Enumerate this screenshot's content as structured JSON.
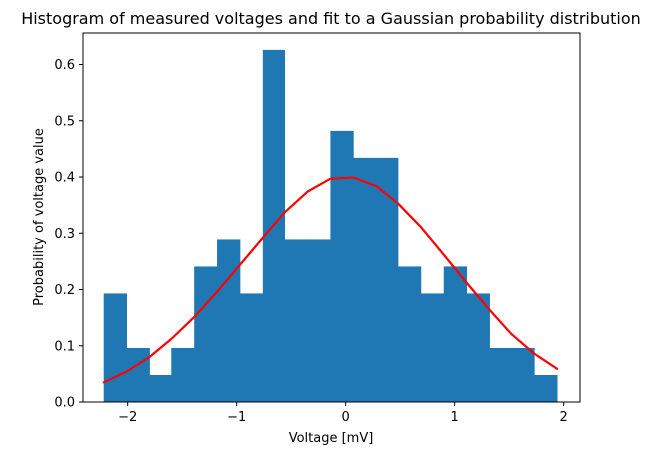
{
  "colors": {
    "bar": "#1f77b4",
    "fit_line": "#ff0000",
    "axes": "#000000",
    "background": "#ffffff"
  },
  "chart_data": {
    "type": "bar",
    "title": "Histogram of measured voltages and fit to a Gaussian probability distribution",
    "xlabel": "Voltage [mV]",
    "ylabel": "Probability of voltage value",
    "xlim": [
      -2.41,
      2.15
    ],
    "ylim": [
      0,
      0.656
    ],
    "grid": false,
    "xticks": [
      -2,
      -1,
      0,
      1,
      2
    ],
    "xtick_labels": [
      "−2",
      "−1",
      "0",
      "1",
      "2"
    ],
    "yticks": [
      0.0,
      0.1,
      0.2,
      0.3,
      0.4,
      0.5,
      0.6
    ],
    "ytick_labels": [
      "0.0",
      "0.1",
      "0.2",
      "0.3",
      "0.4",
      "0.5",
      "0.6"
    ],
    "histogram": {
      "bin_edges": [
        -2.22,
        -2.01,
        -1.8,
        -1.6,
        -1.39,
        -1.18,
        -0.97,
        -0.76,
        -0.56,
        -0.35,
        -0.14,
        0.07,
        0.28,
        0.48,
        0.69,
        0.9,
        1.11,
        1.32,
        1.52,
        1.73,
        1.94
      ],
      "values": [
        0.193,
        0.096,
        0.048,
        0.096,
        0.241,
        0.289,
        0.193,
        0.626,
        0.289,
        0.289,
        0.482,
        0.434,
        0.434,
        0.241,
        0.193,
        0.241,
        0.193,
        0.096,
        0.096,
        0.048
      ]
    },
    "fit_line": {
      "x": [
        -2.22,
        -2.01,
        -1.8,
        -1.6,
        -1.39,
        -1.18,
        -0.97,
        -0.76,
        -0.56,
        -0.35,
        -0.14,
        0.07,
        0.28,
        0.48,
        0.69,
        0.9,
        1.11,
        1.32,
        1.52,
        1.73,
        1.94
      ],
      "y": [
        0.035,
        0.054,
        0.08,
        0.112,
        0.151,
        0.196,
        0.244,
        0.292,
        0.337,
        0.374,
        0.397,
        0.399,
        0.384,
        0.353,
        0.311,
        0.262,
        0.212,
        0.164,
        0.121,
        0.086,
        0.059
      ]
    }
  }
}
